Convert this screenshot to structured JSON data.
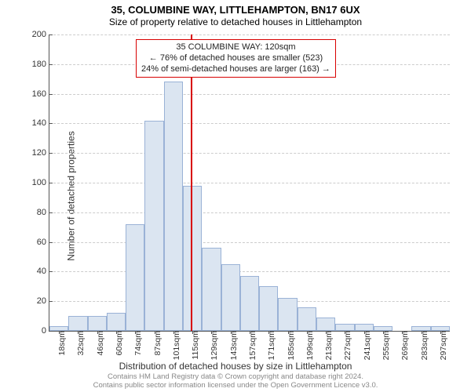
{
  "title": "35, COLUMBINE WAY, LITTLEHAMPTON, BN17 6UX",
  "subtitle": "Size of property relative to detached houses in Littlehampton",
  "ylabel": "Number of detached properties",
  "xlabel": "Distribution of detached houses by size in Littlehampton",
  "footer_line1": "Contains HM Land Registry data © Crown copyright and database right 2024.",
  "footer_line2": "Contains public sector information licensed under the Open Government Licence v3.0.",
  "chart": {
    "type": "histogram",
    "ylim": [
      0,
      200
    ],
    "ytick_step": 20,
    "bar_fill": "#dbe5f1",
    "bar_stroke": "#9ab2d6",
    "grid_color": "#cccccc",
    "background_color": "#ffffff",
    "marker_color": "#d80000",
    "marker_x_index": 7.4,
    "x_labels": [
      "18sqm",
      "32sqm",
      "46sqm",
      "60sqm",
      "74sqm",
      "87sqm",
      "101sqm",
      "115sqm",
      "129sqm",
      "143sqm",
      "157sqm",
      "171sqm",
      "185sqm",
      "199sqm",
      "213sqm",
      "227sqm",
      "241sqm",
      "255sqm",
      "269sqm",
      "283sqm",
      "297sqm"
    ],
    "values": [
      3,
      10,
      10,
      12,
      72,
      142,
      168,
      98,
      56,
      45,
      37,
      30,
      22,
      16,
      9,
      5,
      5,
      3,
      0,
      3,
      3
    ],
    "annotation": {
      "line1": "35 COLUMBINE WAY: 120sqm",
      "line2": "← 76% of detached houses are smaller (523)",
      "line3": "24% of semi-detached houses are larger (163) →"
    }
  }
}
